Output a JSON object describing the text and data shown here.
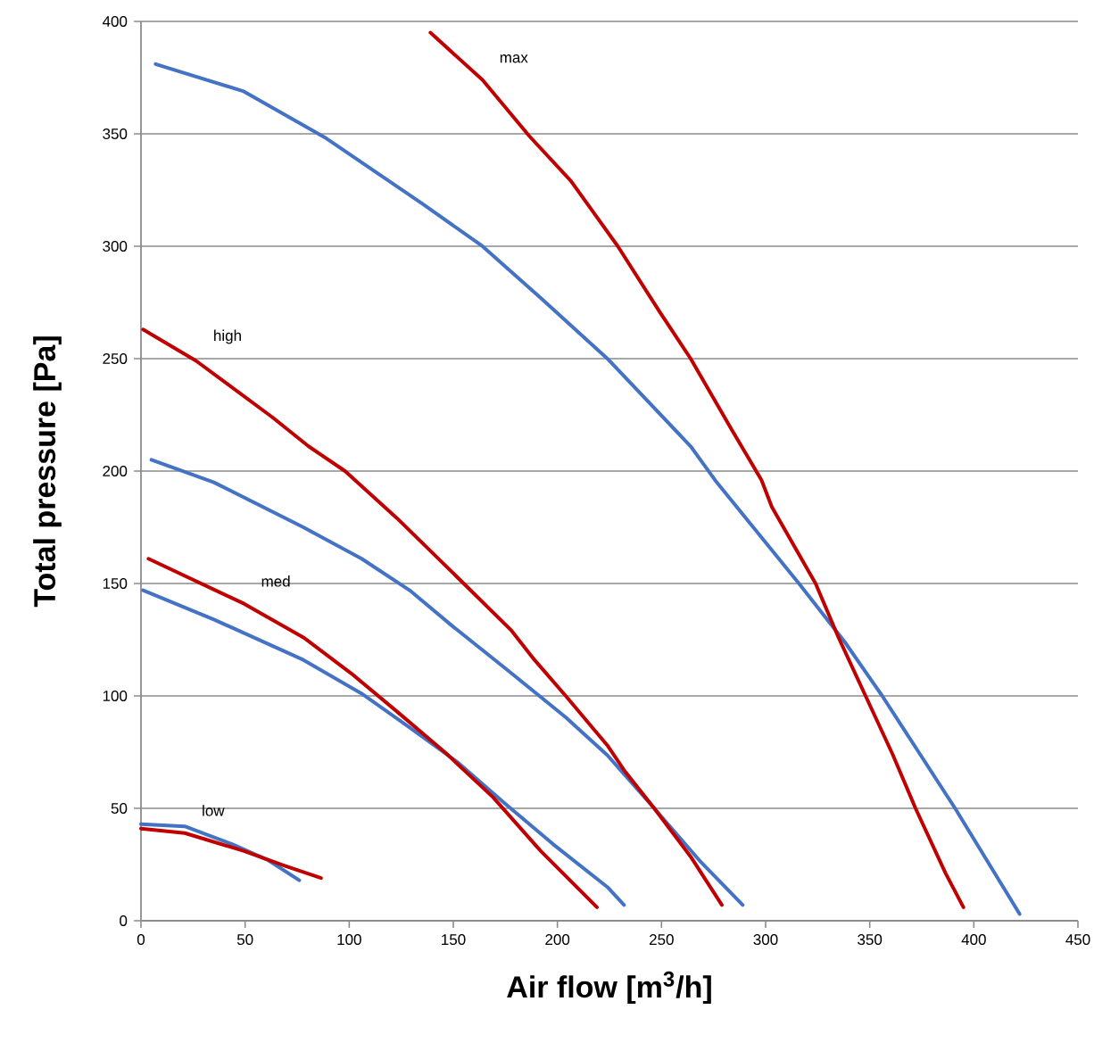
{
  "chart_data": {
    "type": "line",
    "xlabel": "Air flow [m$^{3}$/h]",
    "ylabel": "Total pressure [Pa]",
    "xlim": [
      0,
      450
    ],
    "ylim": [
      0,
      400
    ],
    "xticks": [
      0,
      50,
      100,
      150,
      200,
      250,
      300,
      350,
      400,
      450
    ],
    "yticks": [
      0,
      50,
      100,
      150,
      200,
      250,
      300,
      350,
      400
    ],
    "grid": "y",
    "series": [
      {
        "color": "#4472c4",
        "x": [
          7,
          49,
          89,
          135,
          164,
          192,
          224,
          264,
          276.5,
          316,
          338,
          356,
          391,
          422
        ],
        "values": [
          381,
          369,
          348,
          319,
          300,
          277,
          250,
          211,
          195,
          150,
          124,
          100,
          50,
          3
        ]
      },
      {
        "name": "max",
        "color": "#c00000",
        "x": [
          139,
          164,
          186.5,
          206.5,
          229,
          249,
          264,
          284,
          298,
          303,
          324,
          335,
          348,
          361,
          372,
          386.5,
          395
        ],
        "values": [
          395,
          374,
          349,
          329,
          300,
          271,
          250,
          218,
          196,
          184,
          150,
          126,
          100,
          74,
          50,
          21,
          6
        ]
      },
      {
        "color": "#4472c4",
        "x": [
          5,
          35,
          78,
          106,
          129,
          149,
          178,
          204,
          224,
          246.5,
          269,
          289
        ],
        "values": [
          205,
          195,
          175,
          161,
          147,
          131.5,
          110,
          90.5,
          73.6,
          50,
          26,
          7
        ]
      },
      {
        "name": "high",
        "color": "#c00000",
        "x": [
          1,
          26.5,
          63,
          80.5,
          98,
          123,
          155,
          178,
          189,
          204,
          224,
          232,
          246.5,
          264,
          279
        ],
        "values": [
          263,
          249,
          224,
          211,
          200,
          179,
          150,
          129,
          116,
          100,
          78,
          67,
          50,
          28.5,
          7
        ]
      },
      {
        "color": "#4472c4",
        "x": [
          1,
          35,
          78,
          106,
          129,
          152,
          175,
          198,
          224,
          232
        ],
        "values": [
          147,
          134,
          116,
          101,
          86,
          70.5,
          52,
          34,
          15,
          7
        ]
      },
      {
        "name": "med",
        "color": "#c00000",
        "x": [
          3.6,
          49.5,
          78,
          101,
          123,
          146.5,
          169,
          192,
          219
        ],
        "values": [
          161,
          141,
          126,
          110,
          93,
          74.5,
          55,
          31,
          6
        ]
      },
      {
        "color": "#4472c4",
        "x": [
          0,
          21,
          44,
          61,
          76
        ],
        "values": [
          43,
          42,
          34,
          27,
          18
        ]
      },
      {
        "name": "low",
        "color": "#c00000",
        "x": [
          0,
          21,
          49.5,
          69,
          86.5
        ],
        "values": [
          41,
          39,
          31,
          24.5,
          19
        ]
      }
    ]
  }
}
